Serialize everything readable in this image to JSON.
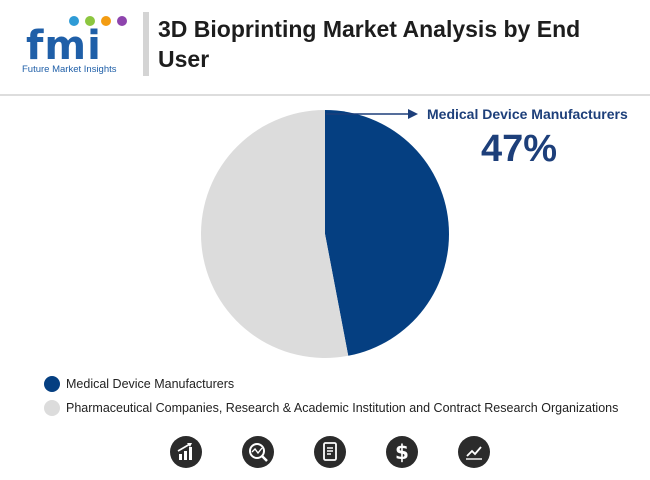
{
  "header": {
    "logo_text": "fmi",
    "logo_subtitle": "Future Market Insights",
    "title": "3D Bioprinting Market Analysis by End User"
  },
  "chart_data": {
    "type": "pie",
    "title": "3D Bioprinting Market Analysis by End User",
    "slices": [
      {
        "label": "Medical Device Manufacturers",
        "value": 47,
        "color": "#053f81"
      },
      {
        "label": "Pharmaceutical Companies, Research & Academic Institution and Contract Research Organizations",
        "value": 53,
        "color": "#dcdcdc"
      }
    ],
    "callout": {
      "label": "Medical Device Manufacturers",
      "value_text": "47%"
    },
    "legend_position": "bottom-left"
  },
  "footer_icons": [
    "growth-chart-icon",
    "analysis-magnifier-icon",
    "report-document-icon",
    "dollar-icon",
    "trend-chart-icon"
  ],
  "colors": {
    "brand": "#1f5fa8",
    "accent": "#053f81",
    "neutral": "#dcdcdc"
  }
}
